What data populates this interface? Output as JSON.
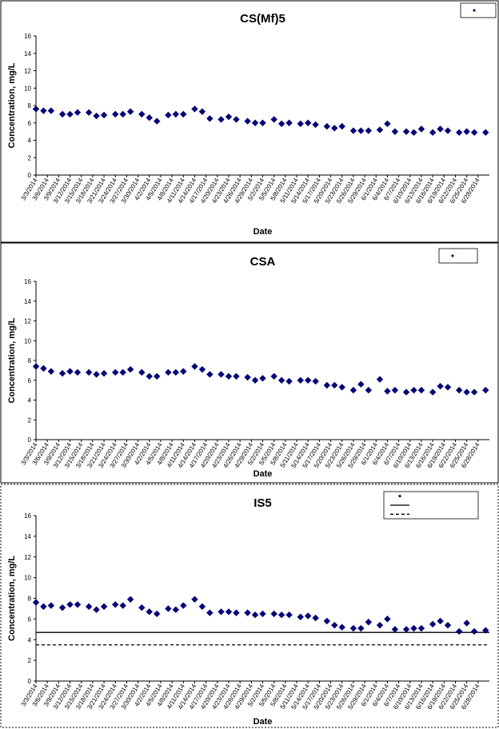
{
  "chart_data": [
    {
      "type": "scatter",
      "title": "CS(Mf)5",
      "xlabel": "Date",
      "ylabel": "Concentration, mg/L",
      "ylim": [
        0,
        16
      ],
      "yticks": [
        0,
        2,
        4,
        6,
        8,
        10,
        12,
        14,
        16
      ],
      "xlim": [
        "3/3/2014",
        "7/1/2014"
      ],
      "xtick_labels": [
        "3/3/2014",
        "3/6/2014",
        "3/9/2014",
        "3/12/2014",
        "3/15/2014",
        "3/18/2014",
        "3/21/2014",
        "3/24/2014",
        "3/27/2014",
        "3/30/2014",
        "4/2/2014",
        "4/5/2014",
        "4/8/2014",
        "4/11/2014",
        "4/14/2014",
        "4/17/2014",
        "4/20/2014",
        "4/23/2014",
        "4/26/2014",
        "4/29/2014",
        "5/2/2014",
        "5/5/2014",
        "5/8/2014",
        "5/11/2014",
        "5/14/2014",
        "5/17/2014",
        "5/20/2014",
        "5/23/2014",
        "5/26/2014",
        "5/29/2014",
        "6/1/2014",
        "6/4/2014",
        "6/7/2014",
        "6/10/2014",
        "6/13/2014",
        "6/16/2014",
        "6/19/2014",
        "6/22/2014",
        "6/25/2014",
        "6/28/2014"
      ],
      "grid": false,
      "legend": {
        "placement": "top-right",
        "entries": []
      },
      "series": [
        {
          "marker": "diamond",
          "color": "#000080",
          "points": [
            [
              "3/3/2014",
              7.6
            ],
            [
              "3/5/2014",
              7.4
            ],
            [
              "3/7/2014",
              7.4
            ],
            [
              "3/10/2014",
              7.0
            ],
            [
              "3/12/2014",
              7.0
            ],
            [
              "3/14/2014",
              7.2
            ],
            [
              "3/17/2014",
              7.2
            ],
            [
              "3/19/2014",
              6.8
            ],
            [
              "3/21/2014",
              6.9
            ],
            [
              "3/24/2014",
              7.0
            ],
            [
              "3/26/2014",
              7.0
            ],
            [
              "3/28/2014",
              7.3
            ],
            [
              "3/31/2014",
              7.0
            ],
            [
              "4/2/2014",
              6.6
            ],
            [
              "4/4/2014",
              6.2
            ],
            [
              "4/7/2014",
              6.9
            ],
            [
              "4/9/2014",
              7.0
            ],
            [
              "4/11/2014",
              7.0
            ],
            [
              "4/14/2014",
              7.6
            ],
            [
              "4/16/2014",
              7.3
            ],
            [
              "4/18/2014",
              6.5
            ],
            [
              "4/21/2014",
              6.4
            ],
            [
              "4/23/2014",
              6.7
            ],
            [
              "4/25/2014",
              6.4
            ],
            [
              "4/28/2014",
              6.2
            ],
            [
              "4/30/2014",
              6.0
            ],
            [
              "5/2/2014",
              6.0
            ],
            [
              "5/5/2014",
              6.4
            ],
            [
              "5/7/2014",
              5.9
            ],
            [
              "5/9/2014",
              6.0
            ],
            [
              "5/12/2014",
              5.9
            ],
            [
              "5/14/2014",
              6.0
            ],
            [
              "5/16/2014",
              5.8
            ],
            [
              "5/19/2014",
              5.6
            ],
            [
              "5/21/2014",
              5.4
            ],
            [
              "5/23/2014",
              5.6
            ],
            [
              "5/26/2014",
              5.1
            ],
            [
              "5/28/2014",
              5.1
            ],
            [
              "5/30/2014",
              5.1
            ],
            [
              "6/2/2014",
              5.2
            ],
            [
              "6/4/2014",
              5.9
            ],
            [
              "6/6/2014",
              5.0
            ],
            [
              "6/9/2014",
              5.0
            ],
            [
              "6/11/2014",
              4.9
            ],
            [
              "6/13/2014",
              5.3
            ],
            [
              "6/16/2014",
              4.9
            ],
            [
              "6/18/2014",
              5.3
            ],
            [
              "6/20/2014",
              5.1
            ],
            [
              "6/23/2014",
              4.9
            ],
            [
              "6/25/2014",
              5.0
            ],
            [
              "6/27/2014",
              4.9
            ],
            [
              "6/30/2014",
              4.9
            ]
          ]
        }
      ]
    },
    {
      "type": "scatter",
      "title": "CSA",
      "xlabel": "Date",
      "ylabel": "Concentration, mg/L",
      "ylim": [
        0,
        16
      ],
      "yticks": [
        0,
        2,
        4,
        6,
        8,
        10,
        12,
        14,
        16
      ],
      "xlim": [
        "3/3/2014",
        "7/1/2014"
      ],
      "xtick_labels": [
        "3/3/2014",
        "3/6/2014",
        "3/9/2014",
        "3/12/2014",
        "3/15/2014",
        "3/18/2014",
        "3/21/2014",
        "3/24/2014",
        "3/27/2014",
        "3/30/2014",
        "4/2/2014",
        "4/5/2014",
        "4/8/2014",
        "4/11/2014",
        "4/14/2014",
        "4/17/2014",
        "4/20/2014",
        "4/23/2014",
        "4/26/2014",
        "4/29/2014",
        "5/2/2014",
        "5/5/2014",
        "5/8/2014",
        "5/11/2014",
        "5/14/2014",
        "5/17/2014",
        "5/20/2014",
        "5/23/2014",
        "5/26/2014",
        "5/29/2014",
        "6/1/2014",
        "6/4/2014",
        "6/7/2014",
        "6/10/2014",
        "6/13/2014",
        "6/16/2014",
        "6/19/2014",
        "6/22/2014",
        "6/25/2014",
        "6/28/2014"
      ],
      "grid": false,
      "legend": {
        "placement": "top-right",
        "entries": []
      },
      "series": [
        {
          "marker": "diamond",
          "color": "#000080",
          "points": [
            [
              "3/3/2014",
              7.4
            ],
            [
              "3/5/2014",
              7.2
            ],
            [
              "3/7/2014",
              6.9
            ],
            [
              "3/10/2014",
              6.7
            ],
            [
              "3/12/2014",
              6.9
            ],
            [
              "3/14/2014",
              6.8
            ],
            [
              "3/17/2014",
              6.8
            ],
            [
              "3/19/2014",
              6.6
            ],
            [
              "3/21/2014",
              6.7
            ],
            [
              "3/24/2014",
              6.8
            ],
            [
              "3/26/2014",
              6.8
            ],
            [
              "3/28/2014",
              7.1
            ],
            [
              "3/31/2014",
              6.8
            ],
            [
              "4/2/2014",
              6.4
            ],
            [
              "4/4/2014",
              6.4
            ],
            [
              "4/7/2014",
              6.8
            ],
            [
              "4/9/2014",
              6.8
            ],
            [
              "4/11/2014",
              6.9
            ],
            [
              "4/14/2014",
              7.4
            ],
            [
              "4/16/2014",
              7.1
            ],
            [
              "4/18/2014",
              6.6
            ],
            [
              "4/21/2014",
              6.6
            ],
            [
              "4/23/2014",
              6.4
            ],
            [
              "4/25/2014",
              6.4
            ],
            [
              "4/28/2014",
              6.3
            ],
            [
              "4/30/2014",
              6.0
            ],
            [
              "5/2/2014",
              6.2
            ],
            [
              "5/5/2014",
              6.4
            ],
            [
              "5/7/2014",
              6.0
            ],
            [
              "5/9/2014",
              5.9
            ],
            [
              "5/12/2014",
              6.0
            ],
            [
              "5/14/2014",
              6.0
            ],
            [
              "5/16/2014",
              5.9
            ],
            [
              "5/19/2014",
              5.5
            ],
            [
              "5/21/2014",
              5.5
            ],
            [
              "5/23/2014",
              5.3
            ],
            [
              "5/26/2014",
              5.0
            ],
            [
              "5/28/2014",
              5.6
            ],
            [
              "5/30/2014",
              5.0
            ],
            [
              "6/2/2014",
              6.1
            ],
            [
              "6/4/2014",
              4.9
            ],
            [
              "6/6/2014",
              5.0
            ],
            [
              "6/9/2014",
              4.8
            ],
            [
              "6/11/2014",
              5.0
            ],
            [
              "6/13/2014",
              5.0
            ],
            [
              "6/16/2014",
              4.8
            ],
            [
              "6/18/2014",
              5.4
            ],
            [
              "6/20/2014",
              5.3
            ],
            [
              "6/23/2014",
              5.0
            ],
            [
              "6/25/2014",
              4.8
            ],
            [
              "6/27/2014",
              4.8
            ],
            [
              "6/30/2014",
              5.0
            ]
          ]
        }
      ]
    },
    {
      "type": "scatter",
      "title": "IS5",
      "xlabel": "Date",
      "ylabel": "Concentration, mg/L",
      "ylim": [
        0,
        16
      ],
      "yticks": [
        0,
        2,
        4,
        6,
        8,
        10,
        12,
        14,
        16
      ],
      "xlim": [
        "3/3/2014",
        "7/1/2014"
      ],
      "xtick_labels": [
        "3/3/2014",
        "3/6/2014",
        "3/9/2014",
        "3/12/2014",
        "3/15/2014",
        "3/18/2014",
        "3/21/2014",
        "3/24/2014",
        "3/27/2014",
        "3/30/2014",
        "4/2/2014",
        "4/5/2014",
        "4/8/2014",
        "4/11/2014",
        "4/14/2014",
        "4/17/2014",
        "4/20/2014",
        "4/23/2014",
        "4/26/2014",
        "4/29/2014",
        "5/2/2014",
        "5/5/2014",
        "5/8/2014",
        "5/11/2014",
        "5/14/2014",
        "5/17/2014",
        "5/20/2014",
        "5/23/2014",
        "5/26/2014",
        "5/29/2014",
        "6/1/2014",
        "6/4/2014",
        "6/7/2014",
        "6/10/2014",
        "6/13/2014",
        "6/16/2014",
        "6/19/2014",
        "6/22/2014",
        "6/25/2014",
        "6/28/2014"
      ],
      "grid": false,
      "legend": {
        "placement": "top-right",
        "entries": []
      },
      "reference_lines": [
        {
          "style": "solid",
          "y": 4.7
        },
        {
          "style": "dashed",
          "y": 3.5
        }
      ],
      "series": [
        {
          "marker": "diamond",
          "color": "#000080",
          "points": [
            [
              "3/3/2014",
              7.6
            ],
            [
              "3/5/2014",
              7.2
            ],
            [
              "3/7/2014",
              7.3
            ],
            [
              "3/10/2014",
              7.1
            ],
            [
              "3/12/2014",
              7.4
            ],
            [
              "3/14/2014",
              7.4
            ],
            [
              "3/17/2014",
              7.2
            ],
            [
              "3/19/2014",
              6.9
            ],
            [
              "3/21/2014",
              7.2
            ],
            [
              "3/24/2014",
              7.4
            ],
            [
              "3/26/2014",
              7.3
            ],
            [
              "3/28/2014",
              7.9
            ],
            [
              "3/31/2014",
              7.1
            ],
            [
              "4/2/2014",
              6.7
            ],
            [
              "4/4/2014",
              6.5
            ],
            [
              "4/7/2014",
              7.0
            ],
            [
              "4/9/2014",
              6.9
            ],
            [
              "4/11/2014",
              7.3
            ],
            [
              "4/14/2014",
              7.9
            ],
            [
              "4/16/2014",
              7.2
            ],
            [
              "4/18/2014",
              6.6
            ],
            [
              "4/21/2014",
              6.7
            ],
            [
              "4/23/2014",
              6.7
            ],
            [
              "4/25/2014",
              6.6
            ],
            [
              "4/28/2014",
              6.6
            ],
            [
              "4/30/2014",
              6.4
            ],
            [
              "5/2/2014",
              6.5
            ],
            [
              "5/5/2014",
              6.5
            ],
            [
              "5/7/2014",
              6.4
            ],
            [
              "5/9/2014",
              6.4
            ],
            [
              "5/12/2014",
              6.2
            ],
            [
              "5/14/2014",
              6.3
            ],
            [
              "5/16/2014",
              6.1
            ],
            [
              "5/19/2014",
              5.8
            ],
            [
              "5/21/2014",
              5.4
            ],
            [
              "5/23/2014",
              5.2
            ],
            [
              "5/26/2014",
              5.1
            ],
            [
              "5/28/2014",
              5.1
            ],
            [
              "5/30/2014",
              5.7
            ],
            [
              "6/2/2014",
              5.4
            ],
            [
              "6/4/2014",
              6.0
            ],
            [
              "6/6/2014",
              5.0
            ],
            [
              "6/9/2014",
              5.0
            ],
            [
              "6/11/2014",
              5.1
            ],
            [
              "6/13/2014",
              5.1
            ],
            [
              "6/16/2014",
              5.5
            ],
            [
              "6/18/2014",
              5.8
            ],
            [
              "6/20/2014",
              5.4
            ],
            [
              "6/23/2014",
              4.8
            ],
            [
              "6/25/2014",
              5.6
            ],
            [
              "6/27/2014",
              4.8
            ],
            [
              "6/30/2014",
              4.9
            ]
          ]
        }
      ]
    }
  ]
}
